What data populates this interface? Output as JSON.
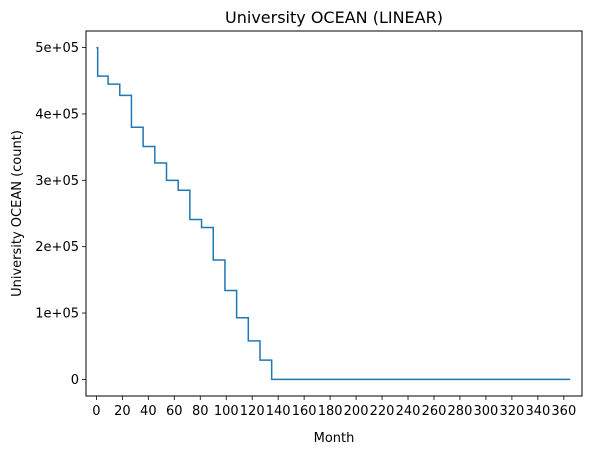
{
  "chart_data": {
    "type": "line",
    "title": "University OCEAN (LINEAR)",
    "xlabel": "Month",
    "ylabel": "University OCEAN (count)",
    "xlim": [
      -8,
      374
    ],
    "ylim": [
      -25000,
      525000
    ],
    "x_ticks": [
      0,
      20,
      40,
      60,
      80,
      100,
      120,
      140,
      160,
      180,
      200,
      220,
      240,
      260,
      280,
      300,
      320,
      340,
      360
    ],
    "x_tick_labels": [
      "0",
      "20",
      "40",
      "60",
      "80",
      "100",
      "120",
      "140",
      "160",
      "180",
      "200",
      "220",
      "240",
      "260",
      "280",
      "300",
      "320",
      "340",
      "360"
    ],
    "y_ticks": [
      0,
      100000,
      200000,
      300000,
      400000,
      500000
    ],
    "y_tick_labels": [
      "0",
      "1e+05",
      "2e+05",
      "3e+05",
      "4e+05",
      "5e+05"
    ],
    "grid": false,
    "series_color": "#1f77b4",
    "series": [
      {
        "step": "post",
        "x": [
          0,
          1,
          9,
          18,
          27,
          36,
          45,
          54,
          63,
          72,
          81,
          90,
          99,
          108,
          117,
          126,
          135,
          365
        ],
        "values": [
          500000,
          457000,
          445000,
          428000,
          380000,
          351000,
          326000,
          300000,
          285000,
          241000,
          229000,
          180000,
          134000,
          93000,
          58000,
          29000,
          0,
          0
        ]
      }
    ]
  }
}
